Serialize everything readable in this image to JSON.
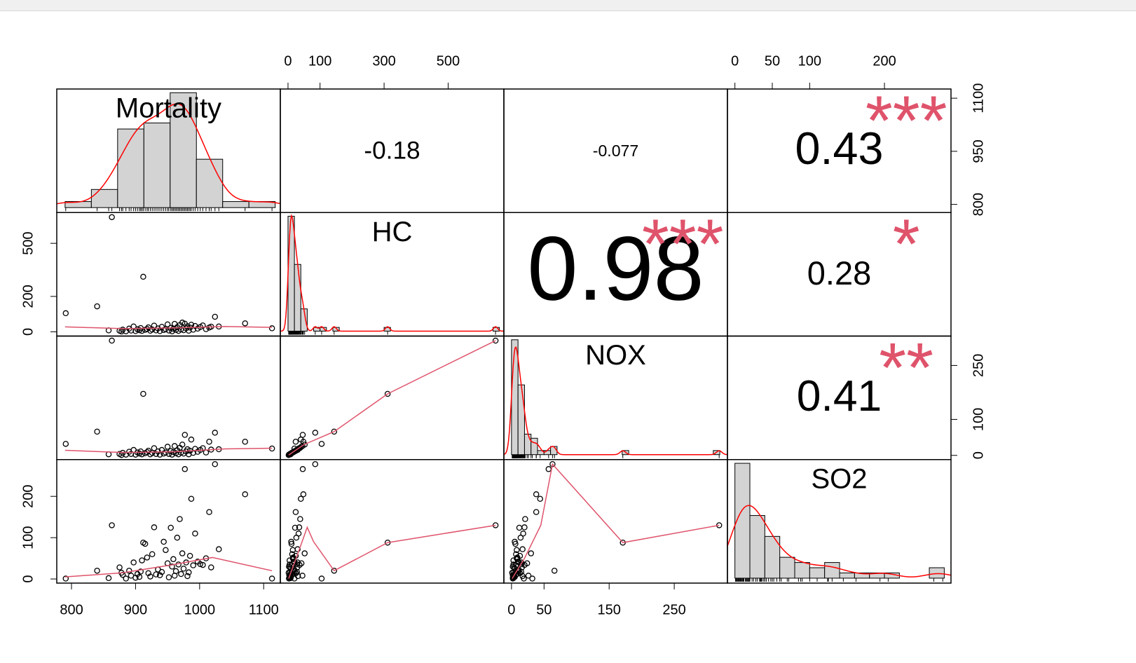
{
  "chart_data": {
    "type": "correlation-matrix",
    "hist_color": "#D3D3D3",
    "density_color": "#FF0000",
    "fit_color": "#DF536B",
    "star_color": "#DF536B",
    "variables": [
      {
        "name": "Mortality",
        "lim": [
          777,
          1126
        ],
        "xticks": [
          800,
          900,
          1000,
          1100
        ],
        "yticks": [
          800,
          950,
          1100
        ],
        "observations": [
          791,
          840,
          863,
          858,
          912,
          875,
          880,
          885,
          890,
          893,
          897,
          900,
          903,
          906,
          908,
          910,
          878,
          915,
          918,
          920,
          923,
          926,
          929,
          932,
          935,
          938,
          941,
          944,
          947,
          950,
          952,
          955,
          957,
          959,
          961,
          963,
          965,
          967,
          969,
          971,
          973,
          975,
          977,
          979,
          981,
          983,
          985,
          987,
          990,
          993,
          997,
          1001,
          1005,
          1010,
          1015,
          1018,
          1024,
          1030,
          1071,
          1113
        ],
        "bins": [
          790,
          831,
          872,
          913,
          954,
          995,
          1036,
          1077,
          1118
        ],
        "counts": [
          1,
          3,
          13,
          14,
          19,
          8,
          1,
          1
        ]
      },
      {
        "name": "HC",
        "lim": [
          -24,
          674
        ],
        "xticks": [
          0,
          100,
          300,
          500
        ],
        "yticks": [
          0,
          200,
          500
        ],
        "observations": [
          105,
          144,
          648,
          8,
          311,
          6,
          12,
          3,
          18,
          7,
          30,
          4,
          14,
          9,
          21,
          5,
          2,
          11,
          16,
          25,
          6,
          13,
          35,
          8,
          19,
          4,
          28,
          10,
          15,
          42,
          7,
          22,
          3,
          17,
          45,
          11,
          26,
          5,
          38,
          14,
          52,
          9,
          46,
          20,
          31,
          6,
          24,
          40,
          12,
          33,
          18,
          27,
          36,
          15,
          24,
          29,
          85,
          30,
          48,
          20
        ],
        "bins": [
          0,
          20,
          40,
          60,
          80,
          100,
          120,
          140,
          160,
          180,
          200,
          220,
          240,
          260,
          280,
          300,
          320,
          340,
          360,
          380,
          400,
          420,
          440,
          460,
          480,
          500,
          520,
          540,
          560,
          580,
          600,
          620,
          640,
          660
        ],
        "counts": [
          31,
          18,
          6,
          0,
          1,
          1,
          0,
          1,
          0,
          0,
          0,
          0,
          0,
          0,
          0,
          1,
          0,
          0,
          0,
          0,
          0,
          0,
          0,
          0,
          0,
          0,
          0,
          0,
          0,
          0,
          0,
          0,
          1
        ]
      },
      {
        "name": "NOX",
        "lim": [
          -11.7,
          331.7
        ],
        "xticks": [
          0,
          50,
          150,
          250
        ],
        "yticks": [
          0,
          100,
          250
        ],
        "observations": [
          32,
          66,
          319,
          3,
          171,
          4,
          7,
          2,
          10,
          4,
          15,
          2,
          8,
          5,
          11,
          3,
          1,
          6,
          9,
          13,
          3,
          7,
          20,
          4,
          11,
          2,
          15,
          5,
          8,
          24,
          4,
          12,
          2,
          9,
          26,
          6,
          14,
          3,
          21,
          8,
          30,
          5,
          57,
          11,
          17,
          3,
          13,
          44,
          7,
          18,
          10,
          15,
          20,
          8,
          38,
          16,
          63,
          17,
          38,
          19
        ],
        "bins": [
          0,
          10,
          20,
          30,
          40,
          50,
          60,
          70,
          80,
          90,
          100,
          110,
          120,
          130,
          140,
          150,
          160,
          170,
          180,
          190,
          200,
          210,
          220,
          230,
          240,
          250,
          260,
          270,
          280,
          290,
          300,
          310,
          320
        ],
        "counts": [
          28,
          17,
          5,
          4,
          1,
          1,
          2,
          0,
          0,
          0,
          0,
          0,
          0,
          0,
          0,
          0,
          0,
          1,
          0,
          0,
          0,
          0,
          0,
          0,
          0,
          0,
          0,
          0,
          0,
          0,
          0,
          1
        ]
      },
      {
        "name": "SO2",
        "lim": [
          -10,
          289
        ],
        "xticks": [
          0,
          50,
          100,
          200
        ],
        "yticks": [
          0,
          100,
          200
        ],
        "observations": [
          1,
          20,
          130,
          2,
          88,
          28,
          10,
          1,
          20,
          8,
          40,
          3,
          12,
          5,
          18,
          45,
          15,
          85,
          52,
          14,
          6,
          60,
          125,
          11,
          23,
          9,
          17,
          90,
          70,
          38,
          4,
          124,
          30,
          48,
          8,
          19,
          100,
          35,
          145,
          12,
          62,
          25,
          266,
          40,
          7,
          16,
          56,
          194,
          33,
          110,
          42,
          36,
          34,
          50,
          162,
          28,
          278,
          72,
          205,
          1
        ],
        "bins": [
          0,
          20,
          40,
          60,
          80,
          100,
          120,
          140,
          160,
          180,
          200,
          220,
          240,
          260,
          280
        ],
        "counts": [
          22,
          12,
          8,
          4,
          3,
          2,
          3,
          1,
          1,
          1,
          1,
          0,
          0,
          2
        ]
      }
    ],
    "correlations": [
      {
        "value": -0.18
      },
      {
        "value": -0.077
      },
      {
        "value": 0.43,
        "stars": "***"
      },
      {
        "value": 0.98,
        "stars": "***"
      },
      {
        "value": 0.28,
        "stars": "*"
      },
      {
        "value": 0.41,
        "stars": "**"
      }
    ],
    "fits": [
      {
        "x": [
          790,
          880,
          960,
          1040,
          1113
        ],
        "y": [
          28,
          18,
          22,
          30,
          25
        ]
      },
      {
        "x": [
          790,
          880,
          960,
          1040,
          1113
        ],
        "y": [
          14,
          8,
          10,
          18,
          20
        ]
      },
      {
        "x": [
          2,
          20,
          50,
          144,
          311,
          648
        ],
        "y": [
          1,
          12,
          30,
          66,
          171,
          319
        ]
      },
      {
        "x": [
          790,
          880,
          960,
          1020,
          1113
        ],
        "y": [
          5,
          15,
          35,
          52,
          20
        ]
      },
      {
        "x": [
          2,
          30,
          60,
          80,
          144,
          311,
          648
        ],
        "y": [
          1,
          60,
          125,
          90,
          20,
          88,
          130
        ]
      },
      {
        "x": [
          1,
          20,
          45,
          63,
          171,
          319
        ],
        "y": [
          1,
          50,
          130,
          278,
          88,
          130
        ]
      }
    ]
  }
}
